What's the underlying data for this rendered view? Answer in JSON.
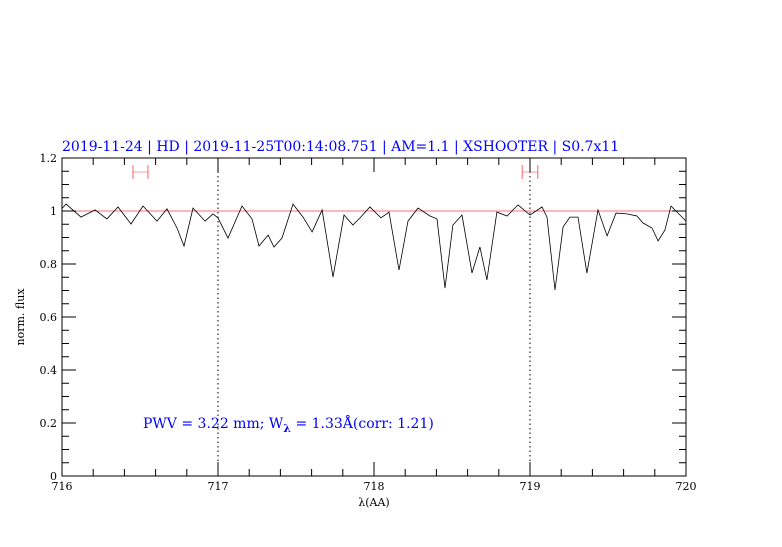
{
  "chart_data": {
    "type": "line",
    "title": "2019-11-24 | HD | 2019-11-25T00:14:08.751 | AM=1.1 | XSHOOTER | S0.7x11",
    "xlabel": "λ(AA)",
    "ylabel": "norm. flux",
    "xlim": [
      716,
      720
    ],
    "ylim": [
      0,
      1.2
    ],
    "xticks": [
      "716",
      "717",
      "718",
      "719",
      "720"
    ],
    "yticks": [
      "0",
      "0.2",
      "0.4",
      "0.6",
      "0.8",
      "1",
      "1.2"
    ],
    "grid": false,
    "annotation": {
      "pre": "PWV  =  3.22  mm;  W",
      "sub": "λ",
      "post": "  =  1.33Å(corr:  1.21)"
    },
    "continuum_level": 1.0,
    "vertical_markers": [
      717,
      719
    ],
    "ranges": [
      {
        "from": 716.455,
        "to": 716.551,
        "y": 1.147
      },
      {
        "from": 718.95,
        "to": 719.05,
        "y": 1.147
      }
    ],
    "colors": {
      "title": "#0000ff",
      "spectrum": "#000000",
      "continuum": "#ff7070",
      "ranges": "#ff6060"
    },
    "series": [
      {
        "x": [
          716.0,
          716.026,
          716.122,
          716.212,
          716.288,
          716.359,
          716.442,
          716.519,
          716.609,
          716.673,
          716.737,
          716.782,
          716.84,
          716.917,
          716.968,
          717.0,
          717.064,
          717.154,
          717.218,
          717.263,
          717.321,
          717.359,
          717.41,
          717.481,
          717.545,
          717.603,
          717.667,
          717.737,
          717.808,
          717.865,
          717.91,
          717.974,
          718.045,
          718.096,
          718.16,
          718.218,
          718.282,
          718.359,
          718.404,
          718.455,
          718.506,
          718.564,
          718.628,
          718.679,
          718.724,
          718.788,
          718.853,
          718.923,
          719.0,
          719.077,
          719.109,
          719.16,
          719.212,
          719.256,
          719.308,
          719.365,
          719.436,
          719.494,
          719.551,
          719.622,
          719.686,
          719.724,
          719.782,
          719.821,
          719.865,
          719.904,
          720.0
        ],
        "y": [
          1.01,
          1.026,
          0.977,
          1.004,
          0.97,
          1.015,
          0.951,
          1.019,
          0.962,
          1.008,
          0.936,
          0.868,
          1.011,
          0.962,
          0.989,
          0.974,
          0.898,
          1.019,
          0.97,
          0.868,
          0.909,
          0.864,
          0.898,
          1.026,
          0.977,
          0.921,
          1.004,
          0.751,
          0.985,
          0.947,
          0.974,
          1.015,
          0.974,
          0.996,
          0.777,
          0.962,
          1.011,
          0.981,
          0.97,
          0.709,
          0.947,
          0.985,
          0.766,
          0.864,
          0.74,
          0.996,
          0.981,
          1.023,
          0.985,
          1.015,
          0.977,
          0.702,
          0.94,
          0.977,
          0.977,
          0.766,
          1.004,
          0.906,
          0.992,
          0.989,
          0.981,
          0.955,
          0.936,
          0.887,
          0.928,
          1.019,
          0.962
        ]
      }
    ]
  }
}
